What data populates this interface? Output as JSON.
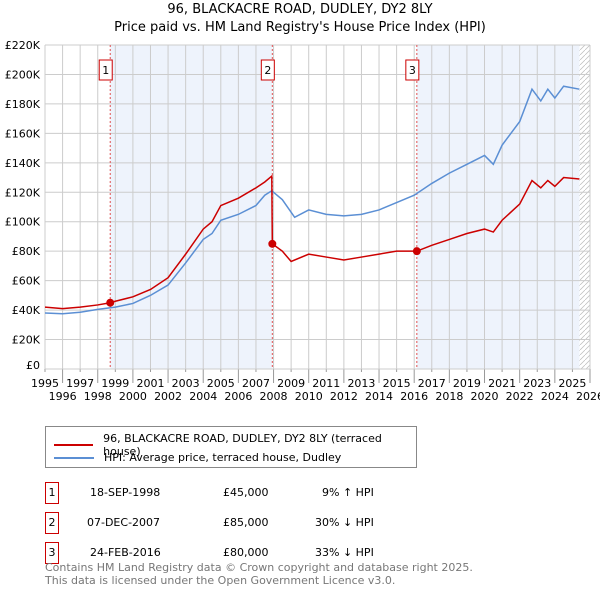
{
  "chart_data": {
    "type": "line",
    "title": "96, BLACKACRE ROAD, DUDLEY, DY2 8LY",
    "subtitle": "Price paid vs. HM Land Registry's House Price Index (HPI)",
    "xlim": [
      1995,
      2026
    ],
    "ylim": [
      0,
      220000
    ],
    "x_ticks": [
      "1995",
      "1996",
      "1997",
      "1998",
      "1999",
      "2000",
      "2001",
      "2002",
      "2003",
      "2004",
      "2005",
      "2006",
      "2007",
      "2008",
      "2009",
      "2010",
      "2011",
      "2012",
      "2013",
      "2014",
      "2015",
      "2016",
      "2017",
      "2018",
      "2019",
      "2020",
      "2021",
      "2022",
      "2023",
      "2024",
      "2025",
      "2026"
    ],
    "y_ticks": [
      "£0",
      "£20K",
      "£40K",
      "£60K",
      "£80K",
      "£100K",
      "£120K",
      "£140K",
      "£160K",
      "£180K",
      "£200K",
      "£220K"
    ],
    "grid": true,
    "series": [
      {
        "name": "96, BLACKACRE ROAD, DUDLEY, DY2 8LY (terraced house)",
        "color": "#cc0000",
        "x": [
          1995,
          1996,
          1997,
          1998,
          1998.71,
          1999,
          2000,
          2001,
          2002,
          2003,
          2004,
          2004.5,
          2005,
          2006,
          2007,
          2007.5,
          2007.9,
          2007.93,
          2008.5,
          2009,
          2010,
          2011,
          2012,
          2013,
          2014,
          2015,
          2016.15,
          2017,
          2018,
          2019,
          2020,
          2020.5,
          2021,
          2022,
          2022.7,
          2023.2,
          2023.6,
          2024,
          2024.5,
          2025.4
        ],
        "y": [
          42000,
          41000,
          42000,
          43500,
          45000,
          46000,
          49000,
          54000,
          62000,
          78000,
          95000,
          100000,
          111000,
          116000,
          123000,
          127000,
          131000,
          85000,
          80000,
          73000,
          78000,
          76000,
          74000,
          76000,
          78000,
          80000,
          80000,
          84000,
          88000,
          92000,
          95000,
          93000,
          101000,
          112000,
          128000,
          123000,
          128000,
          124000,
          130000,
          129000
        ]
      },
      {
        "name": "HPI: Average price, terraced house, Dudley",
        "color": "#5b8fd4",
        "x": [
          1995,
          1996,
          1997,
          1998,
          1999,
          2000,
          2001,
          2002,
          2003,
          2004,
          2004.5,
          2005,
          2006,
          2007,
          2007.5,
          2007.9,
          2008.5,
          2009.2,
          2010,
          2011,
          2012,
          2013,
          2014,
          2015,
          2016,
          2017,
          2018,
          2019,
          2020,
          2020.5,
          2021,
          2022,
          2022.7,
          2023.2,
          2023.6,
          2024,
          2024.5,
          2025.4
        ],
        "y": [
          38000,
          37500,
          38500,
          40500,
          42000,
          44500,
          50000,
          57000,
          72000,
          88000,
          92000,
          101000,
          105000,
          111000,
          118000,
          121000,
          115000,
          103000,
          108000,
          105000,
          104000,
          105000,
          108000,
          113000,
          118000,
          126000,
          133000,
          139000,
          145000,
          139000,
          152000,
          168000,
          190000,
          182000,
          190000,
          184000,
          192000,
          190000
        ]
      }
    ],
    "sales": [
      {
        "label": "1",
        "x": 1998.71,
        "y": 45000,
        "date": "18-SEP-1998",
        "price": "£45,000",
        "hpi_diff": "9% ↑ HPI"
      },
      {
        "label": "2",
        "x": 2007.93,
        "y": 85000,
        "date": "07-DEC-2007",
        "price": "£85,000",
        "hpi_diff": "30% ↓ HPI"
      },
      {
        "label": "3",
        "x": 2016.15,
        "y": 80000,
        "date": "24-FEB-2016",
        "price": "£80,000",
        "hpi_diff": "33% ↓ HPI"
      }
    ],
    "data_end": 2025.4
  },
  "footer": {
    "line1": "Contains HM Land Registry data © Crown copyright and database right 2025.",
    "line2": "This data is licensed under the Open Government Licence v3.0."
  }
}
